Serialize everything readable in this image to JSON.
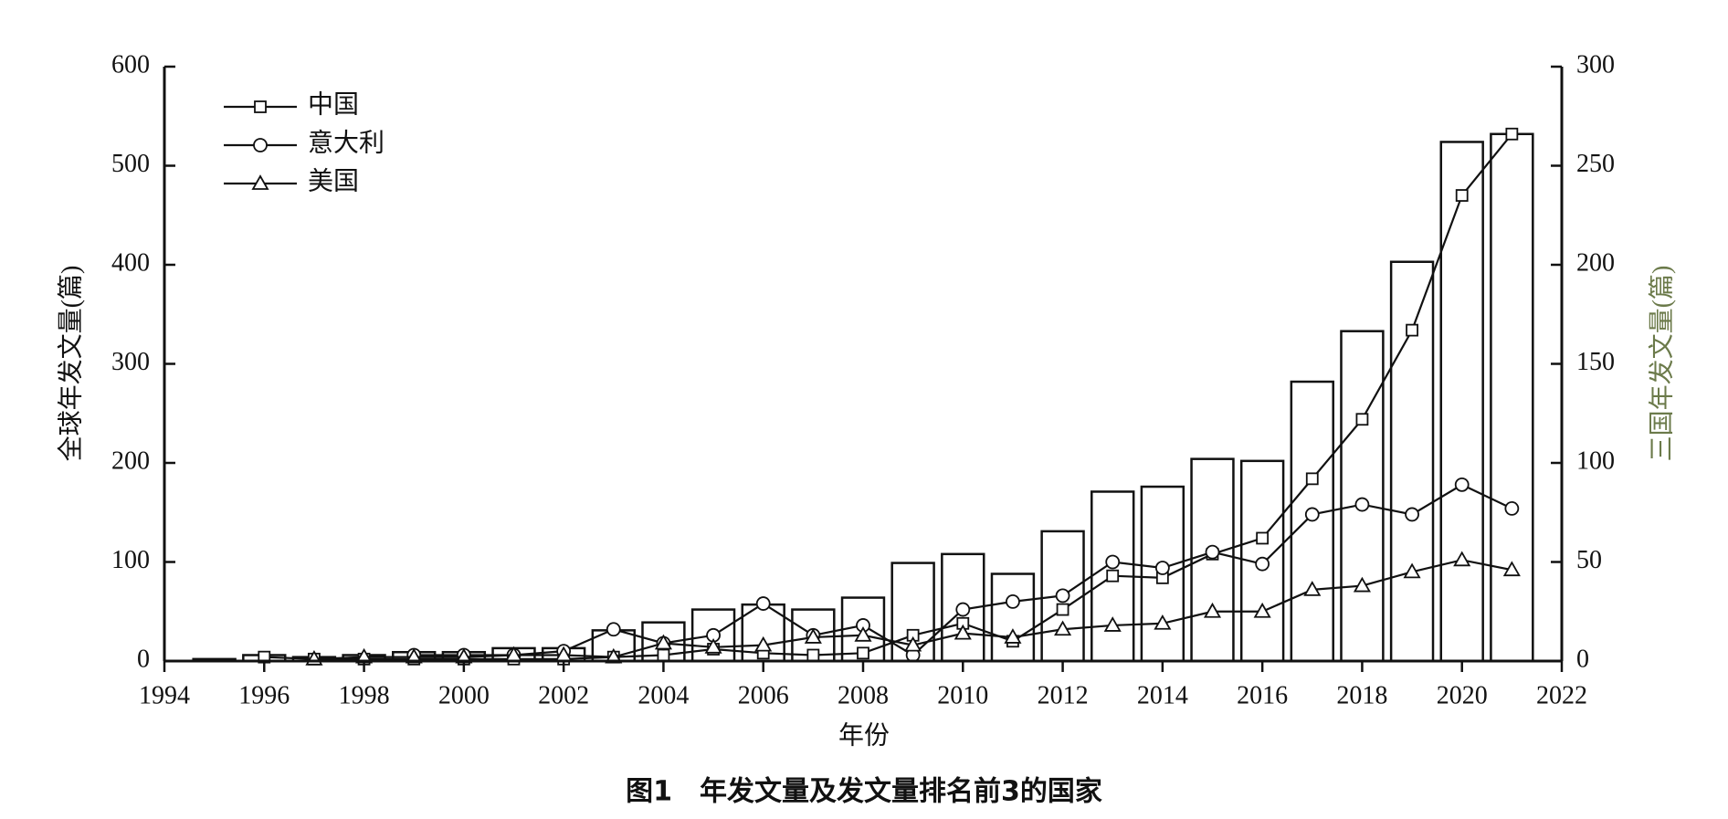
{
  "chart_data": {
    "type": "bar_line",
    "caption": "图1　年发文量及发文量排名前3的国家",
    "xlabel": "年份",
    "ylabel": "全球年发文量(篇)",
    "y2label": "三国年发文量(篇)",
    "x": [
      1995,
      1996,
      1997,
      1998,
      1999,
      2000,
      2001,
      2002,
      2003,
      2004,
      2005,
      2006,
      2007,
      2008,
      2009,
      2010,
      2011,
      2012,
      2013,
      2014,
      2015,
      2016,
      2017,
      2018,
      2019,
      2020,
      2021
    ],
    "xlim": [
      1994,
      2022
    ],
    "xticks": [
      1994,
      1996,
      1998,
      2000,
      2002,
      2004,
      2006,
      2008,
      2010,
      2012,
      2014,
      2016,
      2018,
      2020,
      2022
    ],
    "ylim": [
      0,
      600
    ],
    "yticks": [
      0,
      100,
      200,
      300,
      400,
      500,
      600
    ],
    "y2lim": [
      0,
      300
    ],
    "y2ticks": [
      0,
      50,
      100,
      150,
      200,
      250,
      300
    ],
    "legend": "upper left",
    "bars": {
      "color": "#ffffff",
      "values": [
        2,
        6,
        4,
        6,
        9,
        9,
        13,
        13,
        31,
        39,
        52,
        57,
        52,
        64,
        99,
        108,
        88,
        131,
        171,
        176,
        204,
        202,
        282,
        333,
        403,
        524,
        532
      ]
    },
    "series": [
      {
        "name": "中国",
        "marker": "square",
        "color": "#111111",
        "axis": "y2",
        "values": [
          null,
          2,
          1,
          1,
          1,
          1,
          1,
          1,
          2,
          3,
          6,
          4,
          3,
          4,
          13,
          19,
          10,
          26,
          43,
          42,
          54,
          62,
          92,
          122,
          167,
          235,
          266
        ]
      },
      {
        "name": "意大利",
        "marker": "circle",
        "color": "#111111",
        "axis": "y2",
        "values": [
          null,
          null,
          null,
          null,
          3,
          3,
          3,
          5,
          16,
          9,
          13,
          29,
          13,
          18,
          3,
          26,
          30,
          33,
          50,
          47,
          55,
          49,
          74,
          79,
          74,
          89,
          77
        ]
      },
      {
        "name": "美国",
        "marker": "triangle",
        "color": "#111111",
        "axis": "y2",
        "values": [
          null,
          null,
          1,
          2,
          2,
          2,
          3,
          3,
          2,
          9,
          7,
          8,
          12,
          13,
          8,
          14,
          12,
          16,
          18,
          19,
          25,
          25,
          36,
          38,
          45,
          51,
          46
        ]
      }
    ]
  }
}
